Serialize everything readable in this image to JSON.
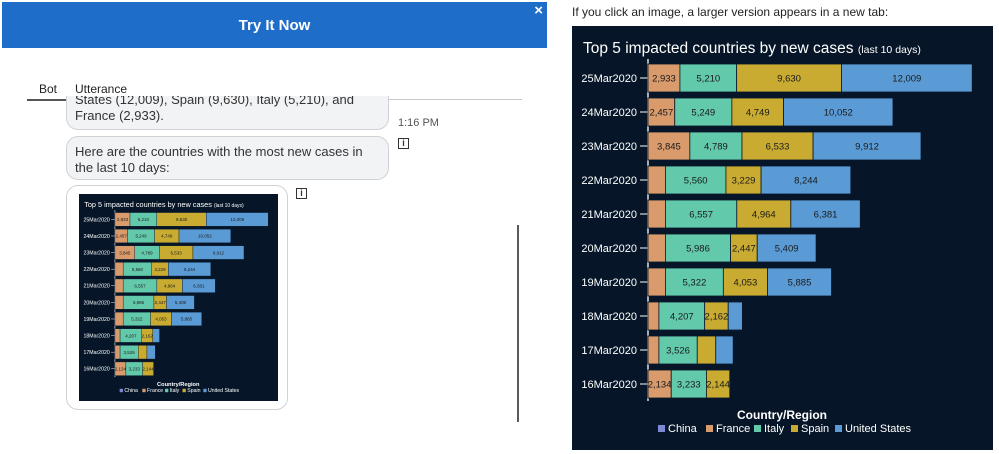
{
  "header": {
    "title": "Try It Now",
    "close_icon": "×"
  },
  "tabs": [
    {
      "label": "Bot"
    },
    {
      "label": "Utterance"
    }
  ],
  "messages": {
    "partial_text": "States (12,009), Spain (9,630), Italy (5,210), and France (2,933).",
    "timestamp": "1:16 PM",
    "intro_text": "Here are the countries with the most new cases in the last 10 days:"
  },
  "right_caption": "If you click an image, a larger version appears in a new tab:",
  "colors": {
    "header_blue": "#1e6dc8",
    "chart_bg": "#061628",
    "China": "#7b8ad3",
    "France": "#d99a6c",
    "Italy": "#63c9ab",
    "Spain": "#c9ab32",
    "United States": "#5b9bd5"
  },
  "chart_data": {
    "type": "bar",
    "orientation": "horizontal",
    "stacked": true,
    "title": "Top 5 impacted countries by new cases",
    "subtitle": "(last 10 days)",
    "legend_title": "Country/Region",
    "legend": [
      "China",
      "France",
      "Italy",
      "Spain",
      "United States"
    ],
    "categories": [
      "25Mar2020",
      "24Mar2020",
      "23Mar2020",
      "22Mar2020",
      "21Mar2020",
      "20Mar2020",
      "19Mar2020",
      "18Mar2020",
      "17Mar2020",
      "16Mar2020"
    ],
    "series": [
      {
        "name": "China",
        "values": [
          0,
          0,
          0,
          0,
          0,
          0,
          0,
          0,
          0,
          0
        ]
      },
      {
        "name": "France",
        "values": [
          2933,
          2457,
          3845,
          1600,
          1600,
          1600,
          1600,
          1000,
          1000,
          2134
        ]
      },
      {
        "name": "Italy",
        "values": [
          5210,
          5249,
          4789,
          5560,
          6557,
          5986,
          5322,
          4207,
          3526,
          3233
        ]
      },
      {
        "name": "Spain",
        "values": [
          9630,
          4749,
          6533,
          3229,
          4964,
          2447,
          4053,
          2162,
          1700,
          2144
        ]
      },
      {
        "name": "United States",
        "values": [
          12009,
          10052,
          9912,
          8244,
          6381,
          5409,
          5885,
          1300,
          1600,
          0
        ]
      }
    ],
    "data_labels": [
      [
        "",
        "2,933",
        "5,210",
        "9,630",
        "12,009"
      ],
      [
        "",
        "2,457",
        "5,249",
        "4,749",
        "10,052"
      ],
      [
        "",
        "3,845",
        "4,789",
        "6,533",
        "9,912"
      ],
      [
        "",
        "",
        "5,560",
        "3,229",
        "8,244"
      ],
      [
        "",
        "",
        "6,557",
        "4,964",
        "6,381"
      ],
      [
        "",
        "",
        "5,986",
        "2,447",
        "5,409"
      ],
      [
        "",
        "",
        "5,322",
        "4,053",
        "5,885"
      ],
      [
        "",
        "",
        "4,207",
        "2,162",
        ""
      ],
      [
        "",
        "",
        "3,526",
        "",
        ""
      ],
      [
        "",
        "2,134",
        "3,233",
        "2,144",
        ""
      ]
    ],
    "xlim": [
      0,
      30500
    ]
  }
}
